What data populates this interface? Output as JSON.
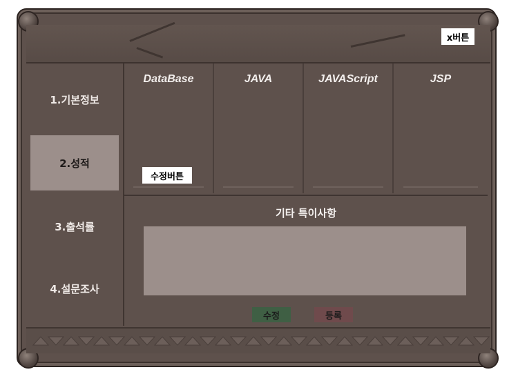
{
  "window": {
    "close_button_label": "x버튼"
  },
  "sidebar": {
    "items": [
      {
        "label": "1.기본정보",
        "active": false
      },
      {
        "label": "2.성적",
        "active": true
      },
      {
        "label": "3.출석률",
        "active": false
      },
      {
        "label": "4.설문조사",
        "active": false
      }
    ]
  },
  "subjects": [
    {
      "name": "DataBase"
    },
    {
      "name": "JAVA"
    },
    {
      "name": "JAVAScript"
    },
    {
      "name": "JSP"
    }
  ],
  "grades": {
    "edit_button_label": "수정버튼"
  },
  "notes": {
    "title": "기타 특이사항",
    "value": ""
  },
  "actions": {
    "modify_label": "수정",
    "register_label": "등록"
  },
  "colors": {
    "frame": "#5e514c",
    "active_tab": "#9c8f8b",
    "modify_button": "#3f5f44",
    "register_button": "#6f4a4c"
  }
}
